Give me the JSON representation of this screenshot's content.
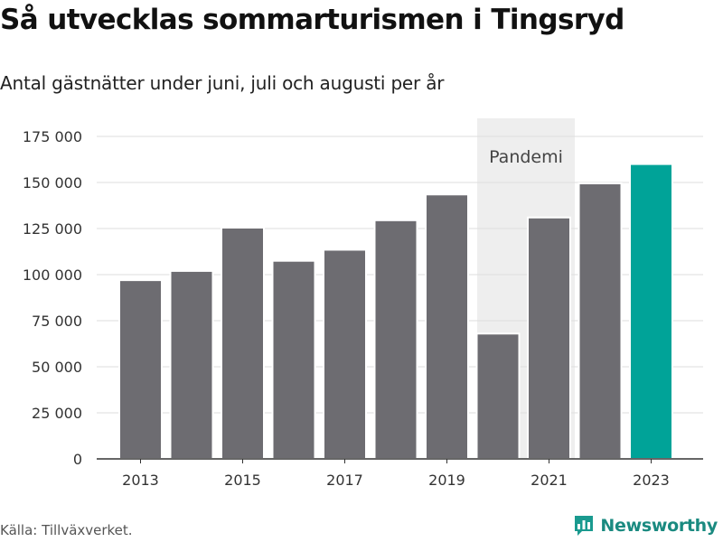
{
  "title": "Så utvecklas sommarturismen i Tingsryd",
  "subtitle": "Antal gästnätter under juni, juli och augusti per år",
  "source": "Källa: Tillväxverket.",
  "brand": {
    "name": "Newsworthy",
    "logo_icon": "bar-chart-logo-icon",
    "color": "#1a9a8f"
  },
  "colors": {
    "bar": "#6d6c71",
    "highlight": "#00a398",
    "pandemic_band": "#eeeeee",
    "grid": "#dddddd",
    "axis": "#333333"
  },
  "chart_data": {
    "type": "bar",
    "categories": [
      "2013",
      "2014",
      "2015",
      "2016",
      "2017",
      "2018",
      "2019",
      "2020",
      "2021",
      "2022",
      "2023"
    ],
    "values": [
      97000,
      102000,
      125500,
      107500,
      113500,
      129500,
      143500,
      68000,
      131000,
      149500,
      160000
    ],
    "highlighted_category": "2023",
    "xtick_labels": [
      "2013",
      "2015",
      "2017",
      "2019",
      "2021",
      "2023"
    ],
    "yticks": [
      0,
      25000,
      50000,
      75000,
      100000,
      125000,
      150000,
      175000
    ],
    "ytick_labels": [
      "0",
      "25 000",
      "50 000",
      "75 000",
      "100 000",
      "125 000",
      "150 000",
      "175 000"
    ],
    "ylim": [
      0,
      175000
    ],
    "grid": true,
    "annotation": {
      "label": "Pandemi",
      "from": "2020",
      "to": "2021"
    }
  }
}
